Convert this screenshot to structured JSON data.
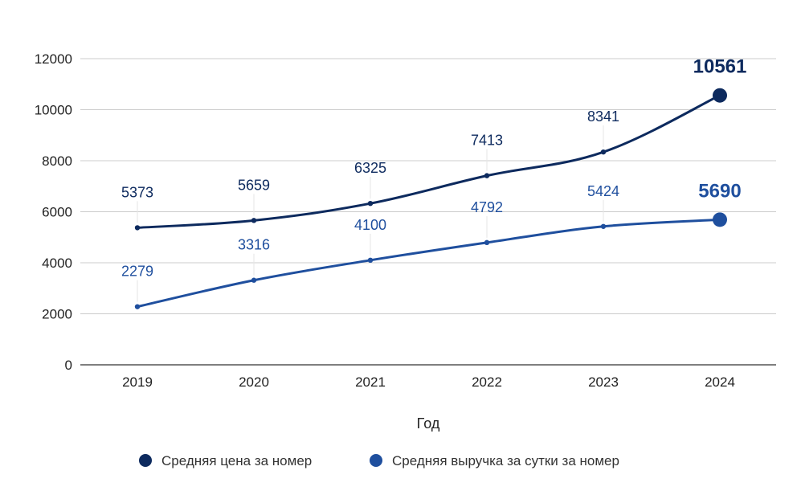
{
  "chart_data": {
    "type": "line",
    "title": "",
    "xlabel": "Год",
    "ylabel": "",
    "categories": [
      "2019",
      "2020",
      "2021",
      "2022",
      "2023",
      "2024"
    ],
    "ylim": [
      0,
      12000
    ],
    "yticks": [
      0,
      2000,
      4000,
      6000,
      8000,
      10000,
      12000
    ],
    "grid": true,
    "legend_position": "bottom",
    "series": [
      {
        "name": "Средняя цена за номер",
        "color": "#0d2a5e",
        "values": [
          5373,
          5659,
          6325,
          7413,
          8341,
          10561
        ],
        "labels": [
          "5373",
          "5659",
          "6325",
          "7413",
          "8341",
          "10561"
        ],
        "highlight_last": true
      },
      {
        "name": "Средняя выручка за сутки за номер",
        "color": "#1f4f9e",
        "values": [
          2279,
          3316,
          4100,
          4792,
          5424,
          5690
        ],
        "labels": [
          "2279",
          "3316",
          "4100",
          "4792",
          "5424",
          "5690"
        ],
        "highlight_last": true
      }
    ]
  }
}
